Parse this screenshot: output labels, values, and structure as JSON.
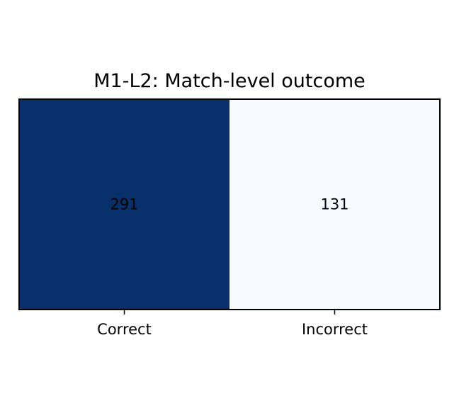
{
  "chart_data": {
    "type": "heatmap",
    "title": "M1-L2: Match-level outcome",
    "xlabel": "",
    "ylabel": "",
    "categories": [
      "Correct",
      "Incorrect"
    ],
    "rows": [
      ""
    ],
    "values": [
      [
        291,
        131
      ]
    ],
    "colormap": "Blues",
    "colors": {
      "high": "#08306b",
      "low": "#f7fbff",
      "text_on_dark": "#000000",
      "text_on_light": "#000000"
    },
    "grid": false,
    "colorbar": false
  }
}
